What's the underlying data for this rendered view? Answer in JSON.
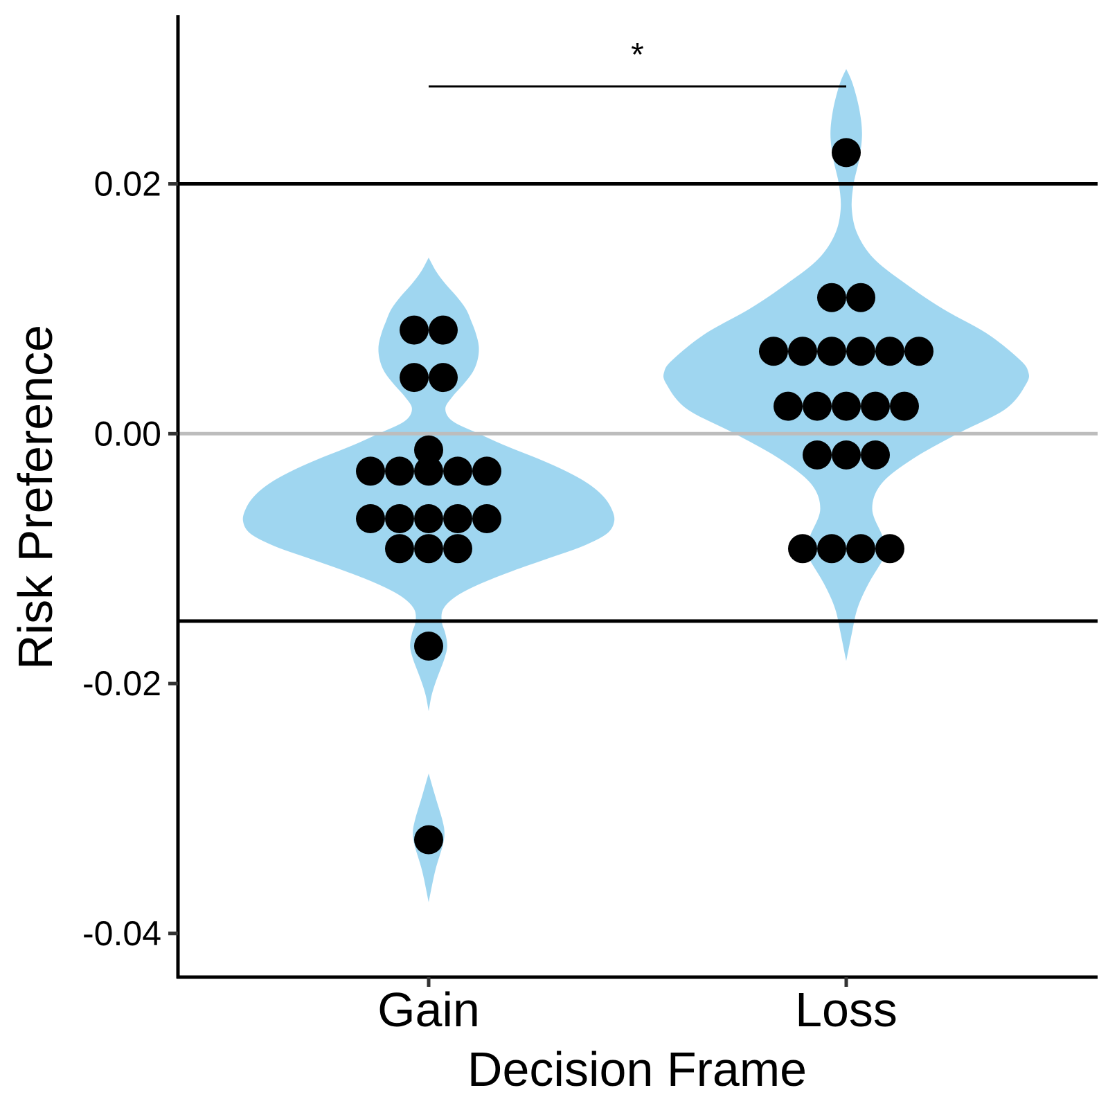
{
  "chart_data": {
    "type": "violin",
    "xlabel": "Decision Frame",
    "ylabel": "Risk Preference",
    "categories": [
      "Gain",
      "Loss"
    ],
    "ylim": [
      -0.0435,
      0.0335
    ],
    "yticks": [
      -0.04,
      -0.02,
      0.0,
      0.02
    ],
    "ytick_labels": [
      "-0.04",
      "-0.02",
      "0.00",
      "0.02"
    ],
    "reference_lines": [
      {
        "y": 0.02,
        "color": "#000000"
      },
      {
        "y": 0.0,
        "color": "#bdbdbd"
      },
      {
        "y": -0.015,
        "color": "#000000"
      }
    ],
    "significance": {
      "from": "Gain",
      "to": "Loss",
      "y": 0.0278,
      "label": "*"
    },
    "violin_color": "#9fd6f0",
    "point_color": "#000000",
    "violins": [
      {
        "name": "Gain",
        "profile": [
          [
            0.0141,
            0.0
          ],
          [
            0.013,
            0.04
          ],
          [
            0.012,
            0.09
          ],
          [
            0.011,
            0.15
          ],
          [
            0.01,
            0.2
          ],
          [
            0.009,
            0.23
          ],
          [
            0.008,
            0.255
          ],
          [
            0.007,
            0.27
          ],
          [
            0.006,
            0.265
          ],
          [
            0.005,
            0.24
          ],
          [
            0.004,
            0.19
          ],
          [
            0.003,
            0.13
          ],
          [
            0.002,
            0.09
          ],
          [
            0.001,
            0.13
          ],
          [
            0.0,
            0.27
          ],
          [
            -0.001,
            0.42
          ],
          [
            -0.002,
            0.59
          ],
          [
            -0.003,
            0.74
          ],
          [
            -0.004,
            0.86
          ],
          [
            -0.005,
            0.94
          ],
          [
            -0.006,
            0.985
          ],
          [
            -0.007,
            1.0
          ],
          [
            -0.008,
            0.96
          ],
          [
            -0.009,
            0.83
          ],
          [
            -0.01,
            0.64
          ],
          [
            -0.011,
            0.45
          ],
          [
            -0.012,
            0.28
          ],
          [
            -0.013,
            0.15
          ],
          [
            -0.014,
            0.08
          ],
          [
            -0.015,
            0.07
          ],
          [
            -0.016,
            0.09
          ],
          [
            -0.017,
            0.1
          ],
          [
            -0.018,
            0.085
          ],
          [
            -0.019,
            0.06
          ],
          [
            -0.02,
            0.035
          ],
          [
            -0.021,
            0.015
          ],
          [
            -0.0222,
            0.0
          ]
        ],
        "extra_segments": [
          [
            [
              -0.0272,
              0.0
            ],
            [
              -0.029,
              0.035
            ],
            [
              -0.031,
              0.075
            ],
            [
              -0.032,
              0.085
            ],
            [
              -0.033,
              0.075
            ],
            [
              -0.035,
              0.035
            ],
            [
              -0.0375,
              0.0
            ]
          ]
        ],
        "points": [
          {
            "y": 0.0083,
            "count": 2
          },
          {
            "y": 0.0045,
            "count": 2
          },
          {
            "y": -0.0013,
            "count": 1
          },
          {
            "y": -0.003,
            "count": 5
          },
          {
            "y": -0.0068,
            "count": 5
          },
          {
            "y": -0.0092,
            "count": 3
          },
          {
            "y": -0.017,
            "count": 1
          },
          {
            "y": -0.0325,
            "count": 1
          }
        ]
      },
      {
        "name": "Loss",
        "profile": [
          [
            0.0292,
            0.0
          ],
          [
            0.028,
            0.035
          ],
          [
            0.026,
            0.07
          ],
          [
            0.024,
            0.085
          ],
          [
            0.022,
            0.07
          ],
          [
            0.02,
            0.04
          ],
          [
            0.018,
            0.03
          ],
          [
            0.016,
            0.06
          ],
          [
            0.014,
            0.15
          ],
          [
            0.012,
            0.32
          ],
          [
            0.01,
            0.52
          ],
          [
            0.008,
            0.76
          ],
          [
            0.006,
            0.93
          ],
          [
            0.005,
            0.98
          ],
          [
            0.004,
            0.97
          ],
          [
            0.002,
            0.86
          ],
          [
            0.0,
            0.6
          ],
          [
            -0.002,
            0.36
          ],
          [
            -0.004,
            0.19
          ],
          [
            -0.006,
            0.14
          ],
          [
            -0.008,
            0.19
          ],
          [
            -0.009,
            0.22
          ],
          [
            -0.01,
            0.2
          ],
          [
            -0.012,
            0.12
          ],
          [
            -0.014,
            0.06
          ],
          [
            -0.016,
            0.03
          ],
          [
            -0.0182,
            0.0
          ]
        ],
        "extra_segments": [],
        "points": [
          {
            "y": 0.0225,
            "count": 1
          },
          {
            "y": 0.0109,
            "count": 2
          },
          {
            "y": 0.0066,
            "count": 6
          },
          {
            "y": 0.0022,
            "count": 5
          },
          {
            "y": -0.0017,
            "count": 3
          },
          {
            "y": -0.0092,
            "count": 4
          }
        ]
      }
    ]
  }
}
